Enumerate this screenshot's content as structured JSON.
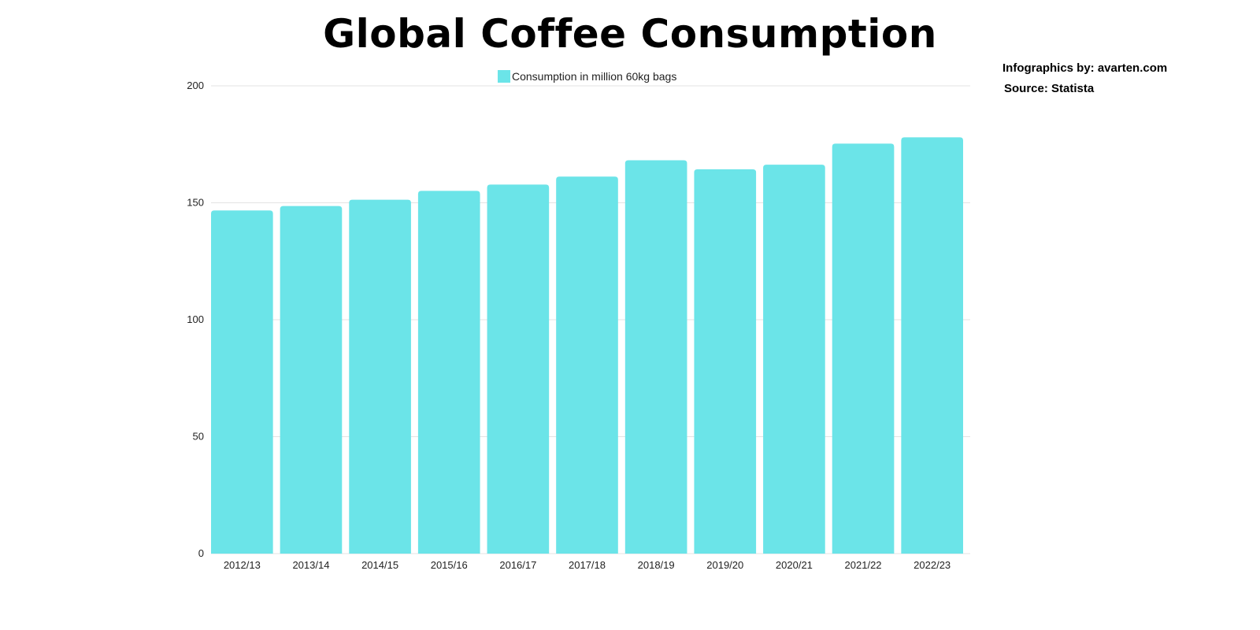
{
  "header": {
    "title": "Global Coffee Consumption",
    "credit": "Infographics by: avarten.com",
    "source": "Source: Statista"
  },
  "chart_data": {
    "type": "bar",
    "title": "Global Coffee Consumption",
    "categories": [
      "2012/13",
      "2013/14",
      "2014/15",
      "2015/16",
      "2016/17",
      "2017/18",
      "2018/19",
      "2019/20",
      "2020/21",
      "2021/22",
      "2022/23"
    ],
    "series": [
      {
        "name": "Consumption in million 60kg bags",
        "color": "#6be4e8",
        "values": [
          146.7,
          148.6,
          151.3,
          155.1,
          157.8,
          161.2,
          168.2,
          164.3,
          166.3,
          175.3,
          178.0
        ]
      }
    ],
    "ylim": [
      0,
      200
    ],
    "yticks": [
      0,
      50,
      100,
      150,
      200
    ],
    "grid": true,
    "legend_position": "top-center"
  }
}
